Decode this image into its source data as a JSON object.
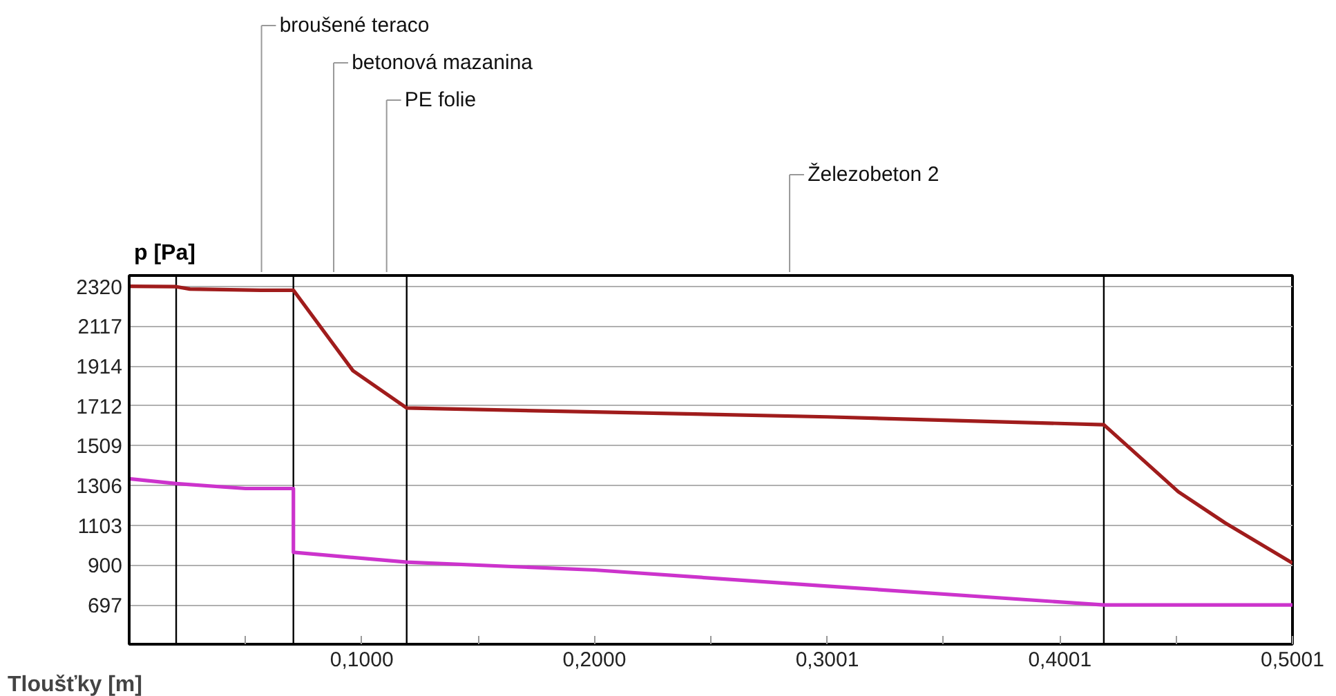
{
  "chart_data": {
    "type": "line",
    "xlabel": "Tloušťky [m]",
    "ylabel": "p [Pa]",
    "series": [
      {
        "color": "#a01c1c",
        "x": [
          0,
          0.0202,
          0.0261,
          0.0564,
          0.0706,
          0.0837,
          0.0962,
          0.1193,
          0.2,
          0.3,
          0.419,
          0.451,
          0.471,
          0.5001
        ],
        "values": [
          2320,
          2318,
          2306,
          2300,
          2300,
          2090,
          1890,
          1700,
          1680,
          1655,
          1615,
          1274,
          1116,
          910
        ]
      },
      {
        "color": "#cc33cc",
        "x": [
          0,
          0.0202,
          0.05,
          0.0706,
          0.0706,
          0.1193,
          0.2,
          0.3,
          0.419,
          0.5001
        ],
        "values": [
          1340,
          1315,
          1290,
          1290,
          965,
          915,
          875,
          793,
          697,
          697
        ]
      }
    ],
    "xlim": [
      0,
      0.5001
    ],
    "ylim": [
      497,
      2375
    ],
    "xticks": [
      {
        "value": 0.05,
        "label": null
      },
      {
        "value": 0.1,
        "label": "0,1000"
      },
      {
        "value": 0.15,
        "label": null
      },
      {
        "value": 0.2,
        "label": "0,2000"
      },
      {
        "value": 0.25,
        "label": null
      },
      {
        "value": 0.3001,
        "label": "0,3001"
      },
      {
        "value": 0.35,
        "label": null
      },
      {
        "value": 0.4001,
        "label": "0,4001"
      },
      {
        "value": 0.45,
        "label": null
      },
      {
        "value": 0.5001,
        "label": "0,5001"
      }
    ],
    "yticks": [
      697,
      900,
      1103,
      1306,
      1509,
      1712,
      1914,
      2117,
      2320
    ],
    "grid": "y",
    "ref_lines": [
      {
        "axis": "x",
        "value": 0.0202,
        "color": "#000000"
      },
      {
        "axis": "x",
        "value": 0.0706,
        "color": "#000000"
      },
      {
        "axis": "x",
        "value": 0.1193,
        "color": "#000000"
      },
      {
        "axis": "x",
        "value": 0.419,
        "color": "#000000"
      }
    ],
    "annotations": [
      "broušené teraco",
      "betonová mazanina",
      "PE folie",
      "Železobeton 2"
    ]
  }
}
